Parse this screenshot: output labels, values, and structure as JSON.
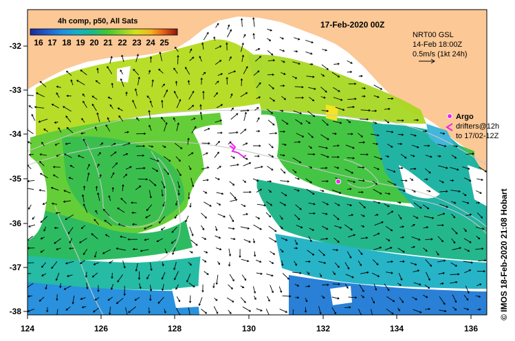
{
  "colorbar": {
    "title": "4h comp, p50, All Sats",
    "ticks": [
      "16",
      "17",
      "18",
      "19",
      "20",
      "21",
      "22",
      "23",
      "24",
      "25"
    ]
  },
  "date_title": "17-Feb-2020 00Z",
  "current_legend": {
    "line1": "NRT00 GSL",
    "line2": "14-Feb 18:00Z",
    "line3": "0.5m/s (1kt 24h)"
  },
  "argo_legend": {
    "label1": "Argo",
    "label2": "drifters@12h",
    "label3": "to 17/02-12Z"
  },
  "credit": "© IMOS 18-Feb-2020 21:08 Hobart",
  "axes": {
    "lon_ticks": [
      "124",
      "126",
      "128",
      "130",
      "132",
      "134",
      "136"
    ],
    "lat_ticks": [
      "-32",
      "-33",
      "-34",
      "-35",
      "-36",
      "-37",
      "-38"
    ]
  },
  "colors": {
    "land": "#fbc896",
    "argo": "#ee22ee",
    "sst_scale": [
      "#1a2a9a",
      "#1f5fd0",
      "#1e90e0",
      "#14b0c8",
      "#18b890",
      "#22b450",
      "#3ec832",
      "#8ad22a",
      "#d6e01e",
      "#f2b41c",
      "#e8641a",
      "#c8281e",
      "#8c1414"
    ]
  }
}
